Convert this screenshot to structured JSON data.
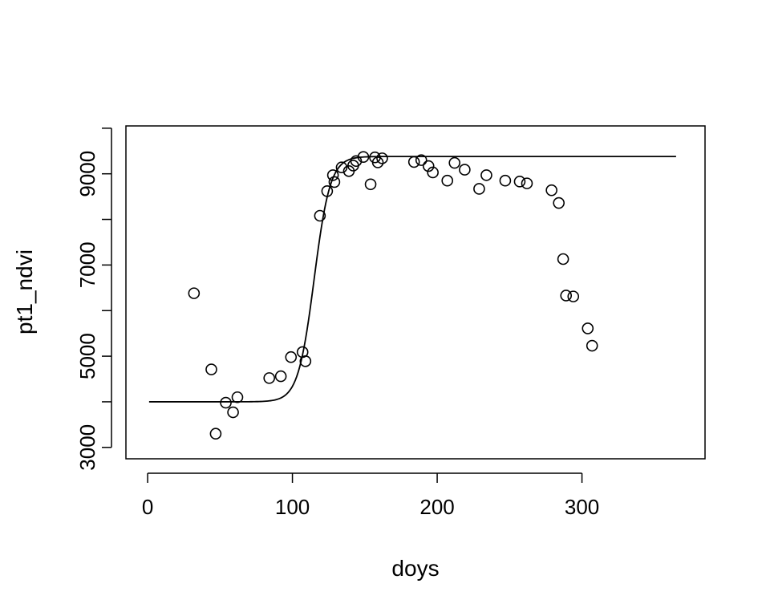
{
  "chart_data": {
    "type": "scatter",
    "title": "",
    "xlabel": "doys",
    "ylabel": "pt1_ndvi",
    "xlim": [
      -15,
      385
    ],
    "ylim": [
      2750,
      10050
    ],
    "x_ticks": [
      0,
      100,
      200,
      300
    ],
    "x_tick_labels": [
      "0",
      "100",
      "200",
      "300"
    ],
    "y_ticks": [
      3000,
      4000,
      5000,
      6000,
      7000,
      8000,
      9000,
      10000
    ],
    "y_tick_labels": [
      "3000",
      "5000",
      "7000",
      "9000"
    ],
    "y_labeled_ticks": [
      3000,
      5000,
      7000,
      9000
    ],
    "grid": false,
    "legend": "none",
    "series": [
      {
        "kind": "points",
        "marker": "open-circle",
        "x": [
          32,
          44,
          47,
          54,
          59,
          62,
          84,
          92,
          99,
          107,
          109,
          119,
          124,
          128,
          129,
          134,
          139,
          142,
          144,
          149,
          154,
          157,
          159,
          162,
          184,
          189,
          194,
          197,
          207,
          212,
          219,
          229,
          234,
          247,
          257,
          262,
          279,
          284,
          287,
          289,
          294,
          304,
          307
        ],
        "y": [
          6380,
          4710,
          3300,
          3980,
          3770,
          4100,
          4520,
          4560,
          4980,
          5090,
          4890,
          8080,
          8620,
          8970,
          8820,
          9140,
          9060,
          9180,
          9280,
          9370,
          8770,
          9360,
          9250,
          9340,
          9260,
          9300,
          9170,
          9030,
          8850,
          9240,
          9090,
          8670,
          8970,
          8850,
          8830,
          8790,
          8640,
          8360,
          7130,
          6330,
          6310,
          5610,
          5230
        ]
      },
      {
        "kind": "line",
        "curve": "double-logistic",
        "x_range": [
          1,
          365
        ],
        "baseline": 4000,
        "plateau": 9380,
        "midpoint": 115,
        "slope": 0.18
      }
    ]
  }
}
